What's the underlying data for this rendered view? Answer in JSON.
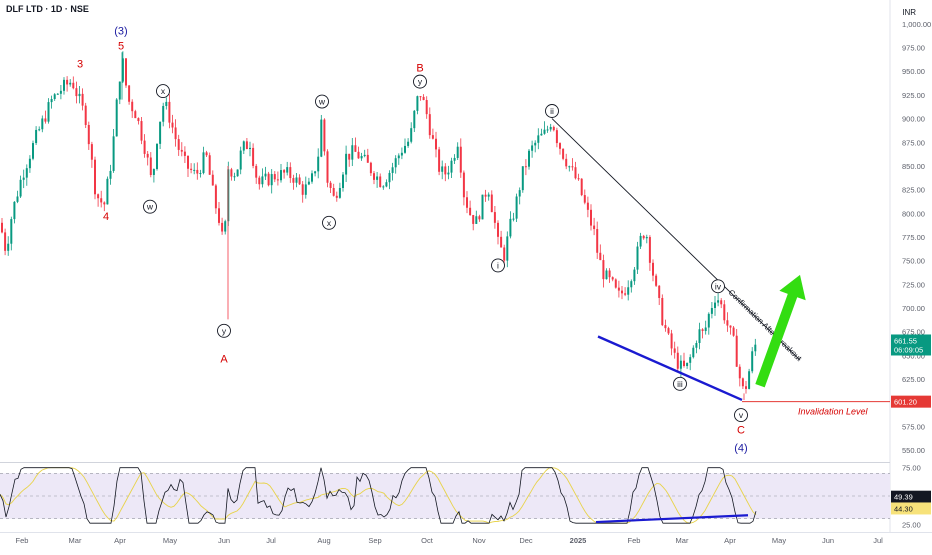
{
  "chart_data": {
    "type": "candlestick",
    "title": "DLF LTD · 1D · NSE",
    "currency": "INR",
    "price_axis": {
      "min": 537.5,
      "max": 1012.5,
      "ticks": [
        "1,000.00",
        "975.00",
        "950.00",
        "925.00",
        "900.00",
        "875.00",
        "850.00",
        "825.00",
        "800.00",
        "775.00",
        "750.00",
        "725.00",
        "700.00",
        "675.00",
        "650.00",
        "625.00",
        "600.00",
        "575.00",
        "550.00"
      ],
      "tick_values": [
        1000,
        975,
        950,
        925,
        900,
        875,
        850,
        825,
        800,
        775,
        750,
        725,
        700,
        675,
        650,
        625,
        600,
        575,
        550
      ]
    },
    "x_axis": {
      "labels": [
        "Feb",
        "Mar",
        "Apr",
        "May",
        "Jun",
        "Jul",
        "Aug",
        "Sep",
        "Oct",
        "Nov",
        "Dec",
        "2025",
        "Feb",
        "Mar",
        "Apr",
        "May",
        "Jun",
        "Jul"
      ]
    },
    "price_path": [
      [
        0,
        790
      ],
      [
        6,
        760
      ],
      [
        12,
        800
      ],
      [
        22,
        840
      ],
      [
        36,
        880
      ],
      [
        52,
        920
      ],
      [
        62,
        932
      ],
      [
        72,
        940
      ],
      [
        86,
        900
      ],
      [
        96,
        820
      ],
      [
        104,
        808
      ],
      [
        112,
        860
      ],
      [
        118,
        930
      ],
      [
        122,
        965
      ],
      [
        128,
        920
      ],
      [
        136,
        905
      ],
      [
        146,
        865
      ],
      [
        152,
        830
      ],
      [
        158,
        890
      ],
      [
        164,
        918
      ],
      [
        170,
        900
      ],
      [
        178,
        870
      ],
      [
        186,
        850
      ],
      [
        196,
        840
      ],
      [
        206,
        862
      ],
      [
        214,
        815
      ],
      [
        220,
        790
      ],
      [
        224,
        760
      ],
      [
        228,
        848
      ],
      [
        236,
        842
      ],
      [
        242,
        868
      ],
      [
        250,
        875
      ],
      [
        258,
        830
      ],
      [
        266,
        835
      ],
      [
        276,
        840
      ],
      [
        286,
        842
      ],
      [
        294,
        838
      ],
      [
        302,
        825
      ],
      [
        310,
        828
      ],
      [
        318,
        860
      ],
      [
        322,
        905
      ],
      [
        326,
        840
      ],
      [
        334,
        815
      ],
      [
        340,
        835
      ],
      [
        346,
        860
      ],
      [
        354,
        865
      ],
      [
        362,
        858
      ],
      [
        372,
        845
      ],
      [
        382,
        832
      ],
      [
        392,
        848
      ],
      [
        402,
        868
      ],
      [
        410,
        878
      ],
      [
        416,
        915
      ],
      [
        420,
        928
      ],
      [
        426,
        908
      ],
      [
        432,
        880
      ],
      [
        438,
        850
      ],
      [
        444,
        840
      ],
      [
        452,
        855
      ],
      [
        458,
        878
      ],
      [
        464,
        820
      ],
      [
        470,
        800
      ],
      [
        476,
        790
      ],
      [
        482,
        810
      ],
      [
        488,
        830
      ],
      [
        494,
        795
      ],
      [
        498,
        768
      ],
      [
        504,
        755
      ],
      [
        510,
        785
      ],
      [
        516,
        810
      ],
      [
        522,
        840
      ],
      [
        530,
        865
      ],
      [
        538,
        878
      ],
      [
        546,
        885
      ],
      [
        552,
        900
      ],
      [
        556,
        882
      ],
      [
        562,
        865
      ],
      [
        570,
        848
      ],
      [
        578,
        832
      ],
      [
        586,
        805
      ],
      [
        594,
        780
      ],
      [
        598,
        755
      ],
      [
        604,
        735
      ],
      [
        612,
        725
      ],
      [
        618,
        712
      ],
      [
        624,
        718
      ],
      [
        630,
        732
      ],
      [
        636,
        752
      ],
      [
        642,
        778
      ],
      [
        646,
        782
      ],
      [
        650,
        755
      ],
      [
        656,
        718
      ],
      [
        662,
        690
      ],
      [
        668,
        668
      ],
      [
        674,
        650
      ],
      [
        680,
        638
      ],
      [
        686,
        635
      ],
      [
        692,
        652
      ],
      [
        698,
        675
      ],
      [
        704,
        672
      ],
      [
        710,
        698
      ],
      [
        716,
        715
      ],
      [
        722,
        700
      ],
      [
        728,
        680
      ],
      [
        734,
        662
      ],
      [
        738,
        638
      ],
      [
        742,
        612
      ],
      [
        746,
        618
      ],
      [
        750,
        638
      ],
      [
        754,
        660
      ],
      [
        758,
        662
      ]
    ],
    "annotations": {
      "wave_labels": [
        {
          "text": "3",
          "color": "#d50000"
        },
        {
          "text": "4",
          "color": "#d50000"
        },
        {
          "text": "5",
          "color": "#d50000"
        },
        {
          "text": "(3)",
          "color": "#1a1aa0"
        },
        {
          "text": "x"
        },
        {
          "text": "w"
        },
        {
          "text": "y"
        },
        {
          "text": "A",
          "color": "#d50000"
        },
        {
          "text": "w"
        },
        {
          "text": "x"
        },
        {
          "text": "B",
          "color": "#d50000"
        },
        {
          "text": "y"
        },
        {
          "text": "i"
        },
        {
          "text": "ii"
        },
        {
          "text": "iii"
        },
        {
          "text": "iv"
        },
        {
          "text": "v"
        },
        {
          "text": "C",
          "color": "#d50000"
        },
        {
          "text": "(4)",
          "color": "#1a1aa0"
        }
      ],
      "trendline_label": "Confirmation After Breakout",
      "invalidation_label": "Invalidation Level",
      "invalidation_price": 601.2,
      "last_price": "661.55",
      "countdown": "06:09:05",
      "invalidation_tag": "601.20"
    },
    "rsi": {
      "min": 20,
      "max": 80,
      "ticks": [
        "75.00",
        "50.00",
        "25.00"
      ],
      "tick_values": [
        75,
        50,
        25
      ],
      "value_tag": "49.39",
      "ma_tag": "44.30"
    }
  },
  "colors": {
    "up": "#089981",
    "down": "#f23645",
    "trendline": "#131722",
    "support": "#1a1ad0",
    "arrow": "#33dd11",
    "invalidation": "#e53935",
    "rsi_band": "#ede8f7"
  }
}
